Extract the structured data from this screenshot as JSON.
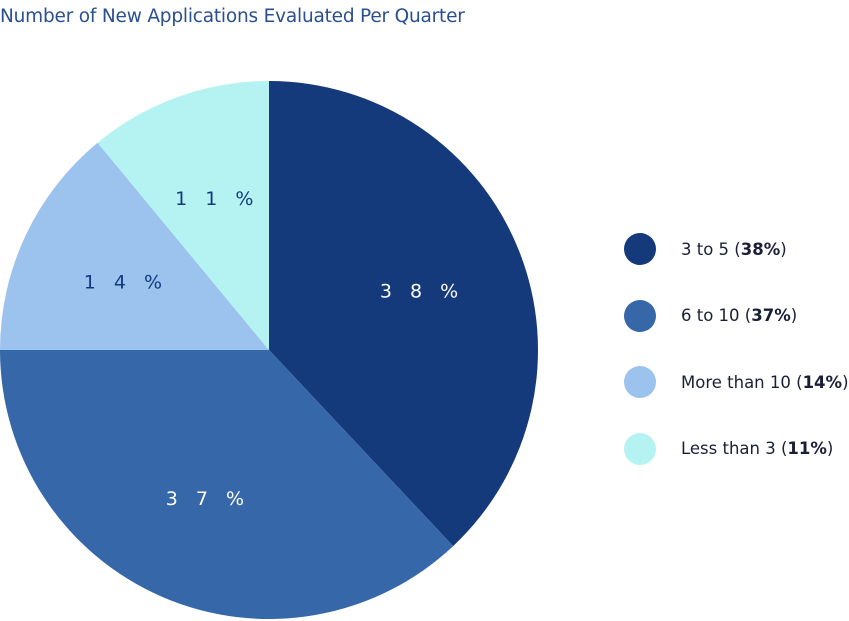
{
  "chart_data": {
    "type": "pie",
    "title": "Number of New Applications Evaluated Per Quarter",
    "slices": [
      {
        "label": "3 to 5",
        "value": 38,
        "display": "3 8 %",
        "legend_pct": "38%",
        "color": "#143a7c",
        "label_color": "#ffffff"
      },
      {
        "label": "6 to 10",
        "value": 37,
        "display": "3 7 %",
        "legend_pct": "37%",
        "color": "#3667a9",
        "label_color": "#ffffff"
      },
      {
        "label": "More than 10",
        "value": 14,
        "display": "1 4 %",
        "legend_pct": "14%",
        "color": "#9cc2ee",
        "label_color": "#143a7c"
      },
      {
        "label": "Less than 3",
        "value": 11,
        "display": "1 1 %",
        "legend_pct": "11%",
        "color": "#b5f3f3",
        "label_color": "#143a7c"
      }
    ],
    "start_angle": "12 o'clock, clockwise",
    "legend_position": "right"
  }
}
